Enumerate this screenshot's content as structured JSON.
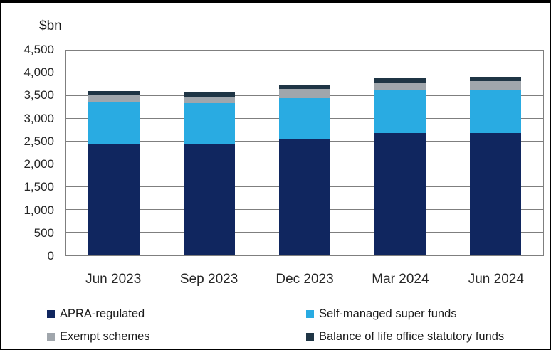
{
  "chart": {
    "axis_title": "$bn"
  },
  "chart_data": {
    "type": "bar",
    "stacked": true,
    "title": "",
    "ylabel": "$bn",
    "xlabel": "",
    "ylim": [
      0,
      4500
    ],
    "ytick_step": 500,
    "grid": true,
    "legend_position": "bottom",
    "categories": [
      "Jun 2023",
      "Sep 2023",
      "Dec 2023",
      "Mar 2024",
      "Jun 2024"
    ],
    "series": [
      {
        "name": "APRA-regulated",
        "color": "#10265f",
        "values": [
          2440,
          2450,
          2560,
          2680,
          2690
        ]
      },
      {
        "name": "Self-managed super funds",
        "color": "#29abe2",
        "values": [
          940,
          890,
          900,
          940,
          940
        ]
      },
      {
        "name": "Exempt schemes",
        "color": "#a0a6ac",
        "values": [
          140,
          150,
          190,
          170,
          200
        ]
      },
      {
        "name": "Balance of life office statutory funds",
        "color": "#1f3545",
        "values": [
          90,
          110,
          100,
          115,
          100
        ]
      }
    ]
  }
}
